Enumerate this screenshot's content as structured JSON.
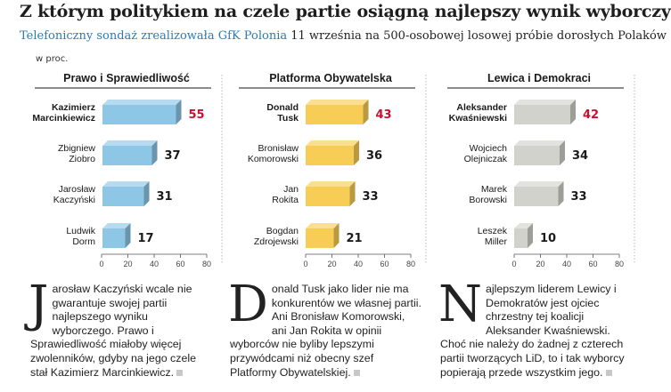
{
  "title": "Z którym politykiem na czele partie osiągną najlepszy wynik wyborczy",
  "subtitle": {
    "lead": "Telefoniczny sondaż zrealizowała GfK Polonia",
    "rest": " 11 września na 500-osobowej losowej próbie dorosłych Polaków"
  },
  "unit_label": "w proc.",
  "colors": {
    "pis": "#8ec6e6",
    "po": "#f7cd56",
    "lid": "#d2d2cc",
    "highlight": "#c8102e",
    "text": "#1a1a1a"
  },
  "chart_data": [
    {
      "type": "bar",
      "orientation": "horizontal",
      "title": "Prawo i Sprawiedliwość",
      "categories": [
        "Kazimierz\nMarcinkiewicz",
        "Zbigniew\nZiobro",
        "Jarosław\nKaczyński",
        "Ludwik\nDorm"
      ],
      "values": [
        55,
        37,
        31,
        17
      ],
      "highlight_index": 0,
      "xlim": [
        0,
        80
      ],
      "xticks": [
        0,
        20,
        40,
        60,
        80
      ],
      "color_key": "pis"
    },
    {
      "type": "bar",
      "orientation": "horizontal",
      "title": "Platforma Obywatelska",
      "categories": [
        "Donald\nTusk",
        "Bronisław\nKomorowski",
        "Jan\nRokita",
        "Bogdan\nZdrojewski"
      ],
      "values": [
        43,
        36,
        33,
        21
      ],
      "highlight_index": 0,
      "xlim": [
        0,
        80
      ],
      "xticks": [
        0,
        20,
        40,
        60,
        80
      ],
      "color_key": "po"
    },
    {
      "type": "bar",
      "orientation": "horizontal",
      "title": "Lewica i Demokraci",
      "categories": [
        "Aleksander\nKwaśniewski",
        "Wojciech\nOlejniczak",
        "Marek\nBorowski",
        "Leszek\nMiller"
      ],
      "values": [
        42,
        34,
        33,
        10
      ],
      "highlight_index": 0,
      "xlim": [
        0,
        80
      ],
      "xticks": [
        0,
        20,
        40,
        60,
        80
      ],
      "color_key": "lid"
    }
  ],
  "articles": [
    {
      "dropcap": "J",
      "body": "arosław Kaczyński wcale nie gwarantuje swojej partii najlepszego wyniku wyborczego. Prawo i Sprawiedliwość miałoby więcej zwolenników, gdyby na jego czele stał Kazimierz Marcinkiewicz."
    },
    {
      "dropcap": "D",
      "body": "onald Tusk jako lider nie ma konkurentów we własnej partii. Ani Bronisław Komorowski, ani Jan Rokita w opinii wyborców nie byliby lepszymi przywódcami niż obecny szef Platformy Obywatelskiej."
    },
    {
      "dropcap": "N",
      "body": "ajlepszym liderem Lewicy i Demokratów jest ojciec chrzestny tej koalicji Aleksander Kwaśniewski. Choć nie należy do żadnej z czterech partii tworzących LiD, to i tak wyborcy popierają przede wszystkim jego."
    }
  ]
}
